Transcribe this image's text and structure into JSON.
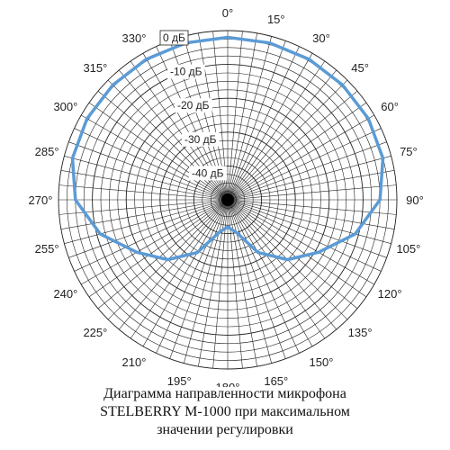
{
  "chart_data": {
    "type": "polar",
    "title_lines": [
      "Диаграмма направленности микрофона",
      "STELBERRY M-1000 при максимальном",
      "значении регулировки"
    ],
    "angle_labels": [
      "0°",
      "15°",
      "30°",
      "45°",
      "60°",
      "75°",
      "90°",
      "105°",
      "120°",
      "135°",
      "150°",
      "165°",
      "180°",
      "195°",
      "210°",
      "225°",
      "240°",
      "255°",
      "270°",
      "285°",
      "300°",
      "315°",
      "330°"
    ],
    "radial_labels": [
      "0 дБ",
      "-10 дБ",
      "-20 дБ",
      "-30 дБ",
      "-40 дБ"
    ],
    "r_range_db": [
      -50,
      0
    ],
    "series": [
      {
        "color": "#5b9bd5",
        "points": [
          {
            "angle": 0,
            "db": -2
          },
          {
            "angle": 15,
            "db": -2
          },
          {
            "angle": 30,
            "db": -2
          },
          {
            "angle": 45,
            "db": -2
          },
          {
            "angle": 60,
            "db": -2
          },
          {
            "angle": 75,
            "db": -2.5
          },
          {
            "angle": 90,
            "db": -5
          },
          {
            "angle": 105,
            "db": -11
          },
          {
            "angle": 120,
            "db": -19
          },
          {
            "angle": 135,
            "db": -25
          },
          {
            "angle": 150,
            "db": -32
          },
          {
            "angle": 165,
            "db": -40
          },
          {
            "angle": 180,
            "db": -42
          },
          {
            "angle": 195,
            "db": -40
          },
          {
            "angle": 210,
            "db": -32
          },
          {
            "angle": 225,
            "db": -25
          },
          {
            "angle": 240,
            "db": -19
          },
          {
            "angle": 255,
            "db": -11
          },
          {
            "angle": 270,
            "db": -5
          },
          {
            "angle": 285,
            "db": -2.5
          },
          {
            "angle": 300,
            "db": -2
          },
          {
            "angle": 315,
            "db": -2
          },
          {
            "angle": 330,
            "db": -2
          },
          {
            "angle": 345,
            "db": -2
          },
          {
            "angle": 360,
            "db": -2
          }
        ]
      }
    ]
  }
}
